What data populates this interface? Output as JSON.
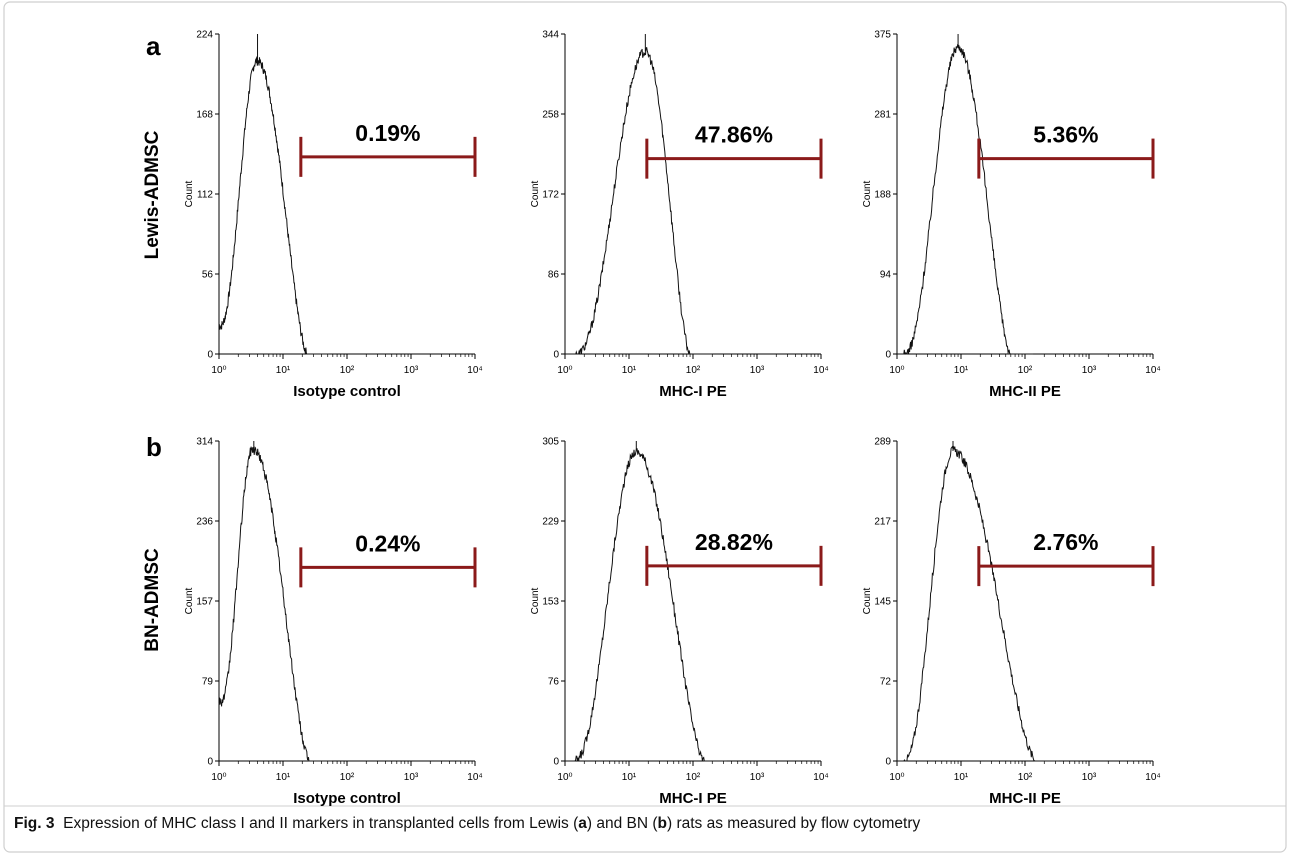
{
  "panel_labels": [
    "a",
    "b"
  ],
  "row_labels": [
    "Lewis-ADMSC",
    "BN-ADMSC"
  ],
  "caption": {
    "fig": "Fig. 3",
    "p1": "Expression of MHC class I and II markers in transplanted cells from Lewis (",
    "a": "a",
    "p2": ") and BN (",
    "b": "b",
    "p3": ") rats as measured by flow cytometry"
  },
  "chart_data": [
    {
      "type": "histogram",
      "row": 0,
      "col": 0,
      "xlabel": "Isotype control",
      "ylabel": "Count",
      "xscale": "log",
      "xlim": [
        1,
        10000
      ],
      "x_ticks": [
        "10⁰",
        "10¹",
        "10²",
        "10³",
        "10⁴"
      ],
      "y_ticks": [
        "0",
        "56",
        "112",
        "168",
        "224"
      ],
      "ylim": [
        0,
        224
      ],
      "peak_x": 4,
      "peak_y": 205,
      "left_base": 1,
      "right_base": 24,
      "left_start_y": 20,
      "gate": {
        "label": "0.19%",
        "from": 19,
        "to": 10000,
        "level": 138
      }
    },
    {
      "type": "histogram",
      "row": 0,
      "col": 1,
      "xlabel": "MHC-I PE",
      "ylabel": "Count",
      "xscale": "log",
      "xlim": [
        1,
        10000
      ],
      "x_ticks": [
        "10⁰",
        "10¹",
        "10²",
        "10³",
        "10⁴"
      ],
      "y_ticks": [
        "0",
        "86",
        "172",
        "258",
        "344"
      ],
      "ylim": [
        0,
        344
      ],
      "peak_x": 18,
      "peak_y": 325,
      "left_base": 1.5,
      "right_base": 90,
      "left_start_y": 0,
      "gate": {
        "label": "47.86%",
        "from": 19,
        "to": 10000,
        "level": 210
      }
    },
    {
      "type": "histogram",
      "row": 0,
      "col": 2,
      "xlabel": "MHC-II PE",
      "ylabel": "Count",
      "xscale": "log",
      "xlim": [
        1,
        10000
      ],
      "x_ticks": [
        "10⁰",
        "10¹",
        "10²",
        "10³",
        "10⁴"
      ],
      "y_ticks": [
        "0",
        "94",
        "188",
        "281",
        "375"
      ],
      "ylim": [
        0,
        375
      ],
      "peak_x": 9,
      "peak_y": 360,
      "left_base": 1.3,
      "right_base": 60,
      "left_start_y": 0,
      "gate": {
        "label": "5.36%",
        "from": 19,
        "to": 10000,
        "level": 229
      }
    },
    {
      "type": "histogram",
      "row": 1,
      "col": 0,
      "xlabel": "Isotype control",
      "ylabel": "Count",
      "xscale": "log",
      "xlim": [
        1,
        10000
      ],
      "x_ticks": [
        "10⁰",
        "10¹",
        "10²",
        "10³",
        "10⁴"
      ],
      "y_ticks": [
        "0",
        "79",
        "157",
        "236",
        "314"
      ],
      "ylim": [
        0,
        314
      ],
      "peak_x": 3.5,
      "peak_y": 305,
      "left_base": 1,
      "right_base": 26,
      "left_start_y": 60,
      "gate": {
        "label": "0.24%",
        "from": 19,
        "to": 10000,
        "level": 190
      }
    },
    {
      "type": "histogram",
      "row": 1,
      "col": 1,
      "xlabel": "MHC-I PE",
      "ylabel": "Count",
      "xscale": "log",
      "xlim": [
        1,
        10000
      ],
      "x_ticks": [
        "10⁰",
        "10¹",
        "10²",
        "10³",
        "10⁴"
      ],
      "y_ticks": [
        "0",
        "76",
        "153",
        "229",
        "305"
      ],
      "ylim": [
        0,
        305
      ],
      "peak_x": 13,
      "peak_y": 295,
      "left_base": 1.4,
      "right_base": 150,
      "left_start_y": 0,
      "gate": {
        "label": "28.82%",
        "from": 19,
        "to": 10000,
        "level": 186
      }
    },
    {
      "type": "histogram",
      "row": 1,
      "col": 2,
      "xlabel": "MHC-II PE",
      "ylabel": "Count",
      "xscale": "log",
      "xlim": [
        1,
        10000
      ],
      "x_ticks": [
        "10⁰",
        "10¹",
        "10²",
        "10³",
        "10⁴"
      ],
      "y_ticks": [
        "0",
        "72",
        "145",
        "217",
        "289"
      ],
      "ylim": [
        0,
        289
      ],
      "peak_x": 7.5,
      "peak_y": 280,
      "left_base": 1.3,
      "right_base": 150,
      "left_start_y": 0,
      "gate": {
        "label": "2.76%",
        "from": 19,
        "to": 10000,
        "level": 176
      }
    }
  ],
  "colors": {
    "gate": "#8b1a1a",
    "trace": "#111111",
    "axis": "#000000",
    "frame": "#cfcfcf"
  }
}
